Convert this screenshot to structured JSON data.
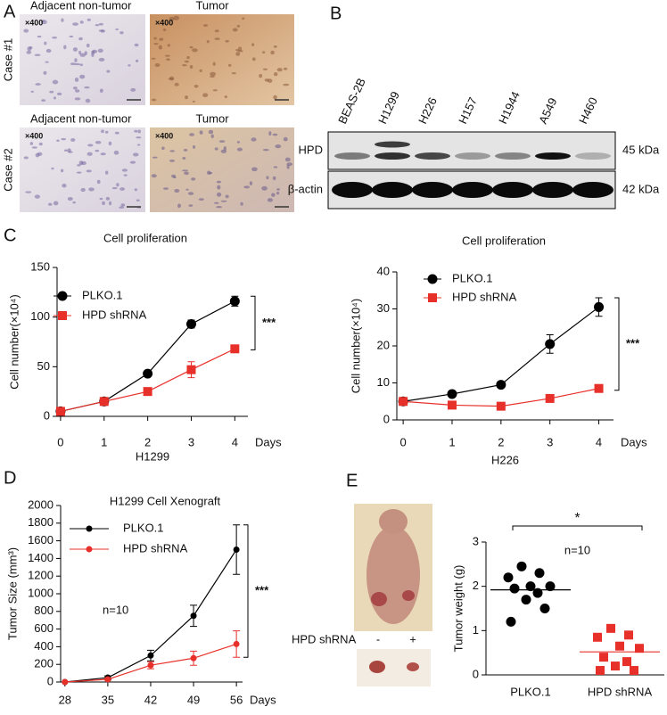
{
  "panels": {
    "A": {
      "label": "A",
      "rows": [
        {
          "case": "Case #1",
          "left": "Adjacent non-tumor",
          "right": "Tumor",
          "left_mag": "×400",
          "right_mag": "×400"
        },
        {
          "case": "Case #2",
          "left": "Adjacent non-tumor",
          "right": "Tumor",
          "left_mag": "×400",
          "right_mag": "×400"
        }
      ]
    },
    "B": {
      "label": "B",
      "lanes": [
        "BEAS-2B",
        "H1299",
        "H226",
        "H157",
        "H1944",
        "A549",
        "H460"
      ],
      "bands": [
        {
          "name": "HPD",
          "size": "45 kDa"
        },
        {
          "name": "β-actin",
          "size": "42 kDa"
        }
      ]
    },
    "C": {
      "label": "C"
    },
    "D": {
      "label": "D"
    },
    "E": {
      "label": "E",
      "photo_label": "HPD shRNA",
      "photo_minus": "-",
      "photo_plus": "+"
    }
  },
  "chart_data": [
    {
      "type": "line",
      "title": "Cell proliferation",
      "x_label": "H1299",
      "x_unit": "Days",
      "y_label": "Cell number(×10⁴)",
      "x": [
        0,
        1,
        2,
        3,
        4
      ],
      "xlim": [
        -0.08,
        4.3
      ],
      "xticks": [
        0,
        1,
        2,
        3,
        4
      ],
      "ylim": [
        0,
        150
      ],
      "yticks": [
        0,
        50,
        100,
        150
      ],
      "legend": "upper left",
      "significance": "***",
      "series": [
        {
          "name": "PLKO.1",
          "color": "#000000",
          "marker": "circle",
          "values": [
            5,
            15,
            43,
            93,
            116
          ],
          "errors": [
            1,
            1,
            1,
            4,
            5
          ]
        },
        {
          "name": "HPD shRNA",
          "color": "#e8302a",
          "marker": "square",
          "values": [
            5,
            15,
            25,
            47,
            68
          ],
          "errors": [
            1,
            1,
            1,
            8,
            1
          ]
        }
      ]
    },
    {
      "type": "line",
      "title": "Cell proliferation",
      "x_label": "H226",
      "x_unit": "Days",
      "y_label": "Cell number(×10⁴)",
      "x": [
        0,
        1,
        2,
        3,
        4
      ],
      "xlim": [
        -0.13,
        4.3
      ],
      "xticks": [
        0,
        1,
        2,
        3,
        4
      ],
      "ylim": [
        0,
        40
      ],
      "yticks": [
        0,
        10,
        20,
        30,
        40
      ],
      "legend": "upper left",
      "significance": "***",
      "series": [
        {
          "name": "PLKO.1",
          "color": "#000000",
          "marker": "circle",
          "values": [
            5,
            7,
            9.5,
            20.5,
            30.5
          ],
          "errors": [
            0,
            0.3,
            0.3,
            2.5,
            2.5
          ]
        },
        {
          "name": "HPD shRNA",
          "color": "#e8302a",
          "marker": "square",
          "values": [
            5,
            4,
            3.7,
            5.8,
            8.5
          ],
          "errors": [
            0,
            0,
            0,
            0.3,
            0.5
          ]
        }
      ]
    },
    {
      "type": "line",
      "title": "H1299 Cell Xenograft",
      "x_unit": "Days",
      "y_label": "Tumor Size (mm³)",
      "x": [
        28,
        35,
        42,
        49,
        56
      ],
      "xlim": [
        27.3,
        57
      ],
      "xticks": [
        28,
        35,
        42,
        49,
        56
      ],
      "ylim": [
        0,
        2000
      ],
      "yticks": [
        0,
        200,
        400,
        600,
        800,
        1000,
        1200,
        1400,
        1600,
        1800,
        2000
      ],
      "legend": "upper left",
      "significance": "***",
      "annotation": "n=10",
      "series": [
        {
          "name": "PLKO.1",
          "color": "#000000",
          "marker": "dot",
          "values": [
            0,
            50,
            300,
            750,
            1500
          ],
          "errors": [
            0,
            20,
            60,
            120,
            280
          ]
        },
        {
          "name": "HPD shRNA",
          "color": "#e8302a",
          "marker": "dot",
          "values": [
            0,
            30,
            190,
            270,
            430
          ],
          "errors": [
            0,
            10,
            40,
            80,
            150
          ]
        }
      ]
    },
    {
      "type": "strip",
      "y_label": "Tumor weight (g)",
      "categories": [
        "PLKO.1",
        "HPD shRNA"
      ],
      "ylim": [
        0,
        3
      ],
      "yticks": [
        0,
        1,
        2,
        3
      ],
      "significance": "*",
      "annotation": "n=10",
      "means": [
        1.92,
        0.52
      ],
      "series": [
        {
          "color": "#000000",
          "marker": "circle",
          "values": [
            2.45,
            2.3,
            2.2,
            2.0,
            2.0,
            1.95,
            1.85,
            1.7,
            1.5,
            1.2
          ]
        },
        {
          "color": "#e8302a",
          "marker": "square",
          "values": [
            1.05,
            0.9,
            0.85,
            0.65,
            0.6,
            0.4,
            0.3,
            0.2,
            0.1,
            0.1
          ]
        }
      ]
    }
  ]
}
